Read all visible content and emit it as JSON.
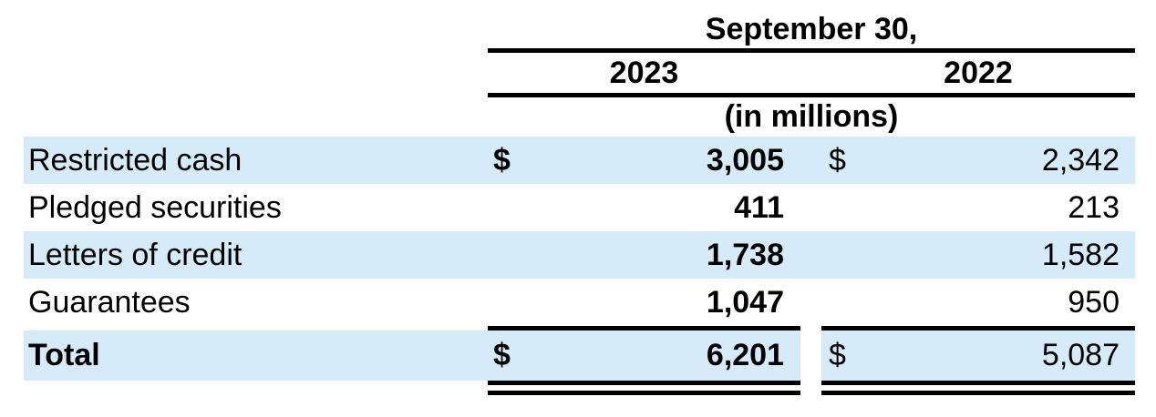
{
  "table": {
    "header": {
      "date_label": "September 30,",
      "col_2023": "2023",
      "col_2022": "2022",
      "units_label": "(in millions)"
    },
    "rows": [
      {
        "label": "Restricted cash",
        "dollar_2023": "$",
        "value_2023": "3,005",
        "dollar_2022": "$",
        "value_2022": "2,342"
      },
      {
        "label": "Pledged securities",
        "dollar_2023": "",
        "value_2023": "411",
        "dollar_2022": "",
        "value_2022": "213"
      },
      {
        "label": "Letters of credit",
        "dollar_2023": "",
        "value_2023": "1,738",
        "dollar_2022": "",
        "value_2022": "1,582"
      },
      {
        "label": "Guarantees",
        "dollar_2023": "",
        "value_2023": "1,047",
        "dollar_2022": "",
        "value_2022": "950"
      }
    ],
    "total_row": {
      "label": "Total",
      "dollar_2023": "$",
      "value_2023": "6,201",
      "dollar_2022": "$",
      "value_2022": "5,087"
    },
    "colors": {
      "stripe": "#d6ebf8",
      "rule": "#000000",
      "text": "#000000",
      "background": "#ffffff"
    }
  },
  "chart_data": {
    "type": "table",
    "title": "September 30,",
    "units": "(in millions)",
    "columns": [
      "",
      "2023",
      "2022"
    ],
    "rows": [
      [
        "Restricted cash",
        3005,
        2342
      ],
      [
        "Pledged securities",
        411,
        213
      ],
      [
        "Letters of credit",
        1738,
        1582
      ],
      [
        "Guarantees",
        1047,
        950
      ],
      [
        "Total",
        6201,
        5087
      ]
    ]
  }
}
